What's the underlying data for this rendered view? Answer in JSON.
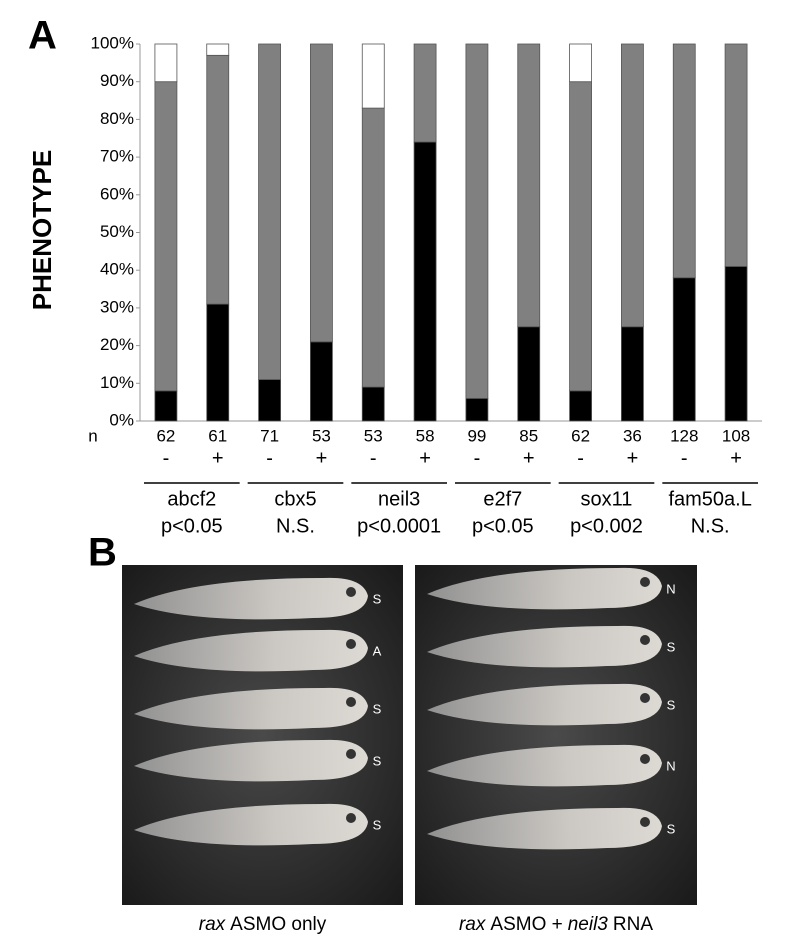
{
  "chart_data": {
    "type": "stacked_bar",
    "panel_label": "A",
    "y_label": "PHENOTYPE",
    "categories": [
      "-",
      "+",
      "-",
      "+",
      "-",
      "+",
      "-",
      "+",
      "-",
      "+",
      "-",
      "+"
    ],
    "n_label": "n",
    "n_values": [
      62,
      61,
      71,
      53,
      53,
      58,
      99,
      85,
      62,
      36,
      128,
      108
    ],
    "groups": [
      {
        "name": "abcf2",
        "stat": "p<0.05"
      },
      {
        "name": "cbx5",
        "stat": "N.S."
      },
      {
        "name": "neil3",
        "stat": "p<0.0001"
      },
      {
        "name": "e2f7",
        "stat": "p<0.05"
      },
      {
        "name": "sox11",
        "stat": "p<0.002"
      },
      {
        "name": "fam50a.L",
        "stat": "N.S."
      }
    ],
    "series": [
      {
        "color": "#000000",
        "values": [
          8,
          31,
          11,
          21,
          9,
          74,
          6,
          25,
          8,
          25,
          38,
          41
        ]
      },
      {
        "color": "#808080",
        "values": [
          82,
          66,
          89,
          79,
          74,
          26,
          94,
          75,
          82,
          75,
          62,
          59
        ]
      },
      {
        "color": "#ffffff",
        "values": [
          10,
          3,
          0,
          0,
          17,
          0,
          0,
          0,
          10,
          0,
          0,
          0
        ]
      }
    ],
    "ylim": [
      0,
      100
    ],
    "yticks": [
      {
        "value": 0,
        "label": "0%"
      },
      {
        "value": 10,
        "label": "10%"
      },
      {
        "value": 20,
        "label": "20%"
      },
      {
        "value": 30,
        "label": "30%"
      },
      {
        "value": 40,
        "label": "40%"
      },
      {
        "value": 50,
        "label": "50%"
      },
      {
        "value": 60,
        "label": "60%"
      },
      {
        "value": 70,
        "label": "70%"
      },
      {
        "value": 80,
        "label": "80%"
      },
      {
        "value": 90,
        "label": "90%"
      },
      {
        "value": 100,
        "label": "100%"
      }
    ],
    "grid": false
  },
  "panel_b": {
    "label": "B",
    "images": [
      {
        "letters": [
          "S",
          "A",
          "S",
          "S",
          "S"
        ],
        "caption": [
          {
            "text": "rax",
            "italic": true
          },
          {
            "text": "ASMO only",
            "italic": false
          }
        ]
      },
      {
        "letters": [
          "N",
          "S",
          "S",
          "N",
          "S"
        ],
        "caption": [
          {
            "text": "rax",
            "italic": true
          },
          {
            "text": "ASMO +",
            "italic": false
          },
          {
            "text": "neil3",
            "italic": true
          },
          {
            "text": "RNA",
            "italic": false
          }
        ]
      }
    ]
  }
}
